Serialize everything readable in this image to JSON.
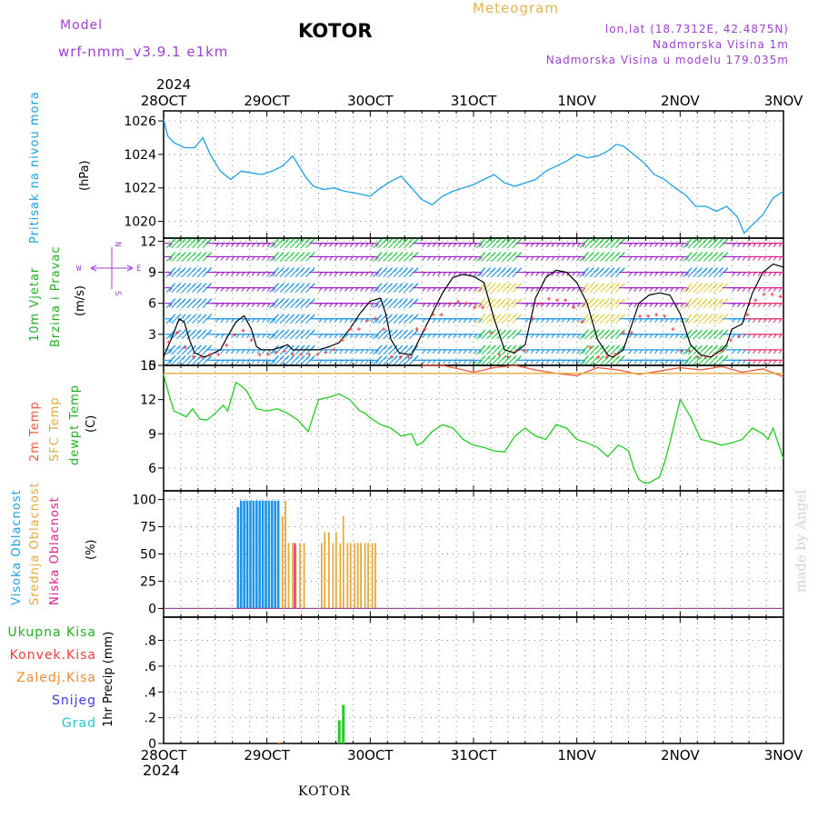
{
  "header": {
    "model_label": "Model",
    "model_name": "wrf-nmm_v3.9.1  e1km",
    "station": "KOTOR",
    "meteogram": "Meteogram",
    "lonlat": "lon,lat (18.7312E, 42.4875N)",
    "altitude": "Nadmorska Visina 1m",
    "model_altitude": "Nadmorska Visina u modelu 179.035m",
    "credit": "made by Angel",
    "footer": "KOTOR"
  },
  "time_axis": {
    "labels": [
      "28OCT",
      "29OCT",
      "30OCT",
      "31OCT",
      "1NOV",
      "2NOV",
      "3NOV"
    ],
    "year": "2024"
  },
  "colors": {
    "pressure": "#1ea0e6",
    "wind_label": "#22b022",
    "dir_label": "#a040d0",
    "temp2m": "#f05a3c",
    "sfc_temp": "#e6aa3c",
    "dewpt": "#22cc22",
    "high_cloud": "#1e96e6",
    "mid_cloud": "#e6aa3c",
    "low_cloud": "#dc1e8c",
    "precip_total": "#22cc22",
    "precip_conv": "#f03c3c",
    "precip_frozen": "#f08c32",
    "snow": "#3c3cdc",
    "hail": "#22c8c8"
  },
  "chart_data": [
    {
      "type": "line",
      "name": "pressure",
      "ylabel": [
        "Pritisak na nivou mora",
        "(hPa)"
      ],
      "ylim": [
        1019,
        1026.6
      ],
      "yticks": [
        1020,
        1022,
        1024,
        1026
      ],
      "x_days": [
        0,
        0.04,
        0.1,
        0.2,
        0.3,
        0.38,
        0.45,
        0.55,
        0.65,
        0.75,
        0.85,
        0.95,
        1.05,
        1.15,
        1.25,
        1.3,
        1.38,
        1.45,
        1.55,
        1.65,
        1.75,
        1.85,
        2.0,
        2.1,
        2.2,
        2.3,
        2.4,
        2.5,
        2.6,
        2.7,
        2.8,
        2.9,
        3.0,
        3.1,
        3.2,
        3.3,
        3.4,
        3.5,
        3.6,
        3.7,
        3.8,
        3.9,
        4.0,
        4.1,
        4.2,
        4.3,
        4.38,
        4.45,
        4.55,
        4.65,
        4.75,
        4.85,
        4.95,
        5.05,
        5.15,
        5.25,
        5.35,
        5.45,
        5.55,
        5.62,
        5.7,
        5.8,
        5.9,
        6.0
      ],
      "y": [
        1026.1,
        1025.1,
        1024.7,
        1024.4,
        1024.4,
        1025.0,
        1024.0,
        1023.0,
        1022.5,
        1023.0,
        1022.9,
        1022.8,
        1023.0,
        1023.3,
        1023.9,
        1023.4,
        1022.6,
        1022.1,
        1021.9,
        1022.0,
        1021.8,
        1021.7,
        1021.5,
        1022.0,
        1022.4,
        1022.7,
        1022.0,
        1021.3,
        1021.0,
        1021.5,
        1021.8,
        1022.0,
        1022.2,
        1022.5,
        1022.8,
        1022.3,
        1022.1,
        1022.3,
        1022.5,
        1023.0,
        1023.3,
        1023.6,
        1024.0,
        1023.8,
        1023.9,
        1024.2,
        1024.6,
        1024.5,
        1024.0,
        1023.5,
        1022.8,
        1022.5,
        1022.0,
        1021.6,
        1020.9,
        1020.9,
        1020.6,
        1020.9,
        1020.3,
        1019.3,
        1019.8,
        1020.4,
        1021.4,
        1021.8
      ]
    },
    {
      "type": "line",
      "name": "wind",
      "ylabel": [
        "10m Vjetar",
        "Brzina i Pravac",
        "(m/s)"
      ],
      "compass": [
        "N",
        "E",
        "S",
        "W"
      ],
      "ylim": [
        0,
        12.3
      ],
      "yticks": [
        0,
        3,
        6,
        9,
        12
      ],
      "x_days": [
        0,
        0.1,
        0.15,
        0.2,
        0.25,
        0.3,
        0.4,
        0.55,
        0.62,
        0.7,
        0.78,
        0.85,
        0.9,
        0.95,
        1.05,
        1.15,
        1.2,
        1.25,
        1.35,
        1.5,
        1.6,
        1.7,
        1.8,
        1.9,
        2.0,
        2.1,
        2.15,
        2.2,
        2.28,
        2.4,
        2.6,
        2.7,
        2.8,
        2.9,
        3.0,
        3.1,
        3.2,
        3.3,
        3.4,
        3.5,
        3.6,
        3.7,
        3.8,
        3.9,
        4.0,
        4.1,
        4.2,
        4.3,
        4.35,
        4.45,
        4.55,
        4.6,
        4.7,
        4.8,
        4.9,
        5.0,
        5.1,
        5.2,
        5.3,
        5.4,
        5.45,
        5.5,
        5.6,
        5.7,
        5.8,
        5.9,
        6.0
      ],
      "y": [
        0.8,
        3.2,
        4.5,
        4.2,
        2.5,
        1.2,
        0.8,
        1.5,
        2.8,
        4.2,
        4.8,
        3.5,
        1.8,
        1.5,
        1.5,
        1.8,
        2.0,
        1.5,
        1.5,
        1.5,
        1.8,
        2.2,
        3.5,
        5.0,
        6.2,
        6.5,
        5.0,
        2.5,
        1.2,
        1.0,
        5.0,
        7.0,
        8.5,
        8.8,
        8.6,
        8.0,
        4.5,
        1.5,
        1.2,
        2.0,
        6.5,
        8.5,
        9.2,
        9.0,
        8.0,
        6.0,
        2.5,
        1.0,
        0.8,
        1.5,
        4.5,
        6.0,
        6.8,
        7.0,
        6.8,
        5.0,
        2.0,
        1.0,
        0.8,
        1.5,
        2.0,
        3.5,
        4.0,
        7.0,
        9.0,
        9.8,
        9.5
      ]
    },
    {
      "type": "line",
      "name": "temperature",
      "ylabel": [
        "2m Temp",
        "SFC Temp",
        "dewpt Temp",
        "(C)"
      ],
      "ylim": [
        4,
        15
      ],
      "yticks": [
        6,
        9,
        12,
        15
      ],
      "series": [
        {
          "key": "t2m",
          "x_days": [
            2.5,
            2.7,
            2.9,
            3.0,
            3.2,
            3.4,
            3.6,
            3.8,
            4.0,
            4.2,
            4.4,
            4.6,
            4.8,
            5.0,
            5.2,
            5.4,
            5.6,
            5.8,
            6.0
          ],
          "y": [
            15.3,
            15.0,
            14.6,
            14.4,
            14.8,
            15.0,
            14.6,
            14.3,
            14.1,
            14.8,
            14.6,
            14.2,
            14.5,
            14.8,
            14.6,
            14.9,
            14.4,
            14.7,
            14.0
          ]
        },
        {
          "key": "sfc",
          "x_days": [
            0,
            6
          ],
          "y": [
            14.3,
            14.3
          ]
        },
        {
          "key": "dewpt",
          "x_days": [
            0,
            0.05,
            0.1,
            0.15,
            0.22,
            0.28,
            0.35,
            0.42,
            0.5,
            0.58,
            0.62,
            0.7,
            0.75,
            0.8,
            0.9,
            1.0,
            1.1,
            1.2,
            1.3,
            1.4,
            1.5,
            1.6,
            1.7,
            1.8,
            1.9,
            1.95,
            2.0,
            2.1,
            2.2,
            2.3,
            2.4,
            2.45,
            2.5,
            2.6,
            2.7,
            2.8,
            2.9,
            3.0,
            3.1,
            3.2,
            3.3,
            3.4,
            3.5,
            3.6,
            3.7,
            3.8,
            3.9,
            4.0,
            4.1,
            4.2,
            4.3,
            4.4,
            4.45,
            4.5,
            4.55,
            4.6,
            4.65,
            4.7,
            4.8,
            4.85,
            4.9,
            5.0,
            5.1,
            5.2,
            5.3,
            5.4,
            5.5,
            5.6,
            5.7,
            5.8,
            5.85,
            5.9,
            6.0
          ],
          "y": [
            14.2,
            12.5,
            11.0,
            10.8,
            10.5,
            11.2,
            10.3,
            10.2,
            10.8,
            11.5,
            11.0,
            13.5,
            13.2,
            12.8,
            11.2,
            11.0,
            11.2,
            10.8,
            10.2,
            9.2,
            12.0,
            12.2,
            12.5,
            12.0,
            11.0,
            10.8,
            10.4,
            9.8,
            9.5,
            8.8,
            9.0,
            8.0,
            8.2,
            9.2,
            9.8,
            9.5,
            8.5,
            8.0,
            7.8,
            7.5,
            7.4,
            8.8,
            9.5,
            8.8,
            8.5,
            9.8,
            9.5,
            8.5,
            8.2,
            7.8,
            7.0,
            8.0,
            7.8,
            7.5,
            6.0,
            5.0,
            4.7,
            4.7,
            5.2,
            6.5,
            8.2,
            12.0,
            10.5,
            8.5,
            8.3,
            8.0,
            8.2,
            8.5,
            9.5,
            9.0,
            8.5,
            9.5,
            6.8
          ]
        }
      ]
    },
    {
      "type": "bar",
      "name": "cloud_cover",
      "ylabel": [
        "Visoka Oblacnost",
        "Srednja Oblacnost",
        "Niska Oblacnost",
        "(%)"
      ],
      "ylim": [
        -8,
        108
      ],
      "yticks": [
        0,
        25,
        50,
        75,
        100
      ],
      "series": [
        {
          "key": "high",
          "x_days": [
            0.72,
            0.75,
            0.78,
            0.81,
            0.84,
            0.87,
            0.9,
            0.93,
            0.96,
            0.99,
            1.02,
            1.05,
            1.08,
            1.11
          ],
          "values": [
            93,
            99,
            99,
            99,
            99,
            99,
            99,
            99,
            99,
            99,
            99,
            99,
            99,
            99
          ]
        },
        {
          "key": "mid",
          "x_days": [
            1.15,
            1.18,
            1.21,
            1.25,
            1.28,
            1.32,
            1.36,
            1.53,
            1.56,
            1.6,
            1.64,
            1.67,
            1.71,
            1.74,
            1.78,
            1.81,
            1.85,
            1.88,
            1.91,
            1.95,
            1.98,
            2.02,
            2.05
          ],
          "values": [
            85,
            99,
            60,
            60,
            58,
            60,
            60,
            60,
            70,
            70,
            60,
            70,
            60,
            85,
            60,
            60,
            60,
            60,
            60,
            60,
            60,
            60,
            60
          ]
        },
        {
          "key": "low",
          "x_days": [
            1.27
          ],
          "values": [
            60
          ]
        }
      ]
    },
    {
      "type": "bar",
      "name": "precipitation",
      "ylabel": [
        "1hr Precip (mm)"
      ],
      "legend": [
        "Ukupna Kisa",
        "Konvek.Kisa",
        "Zaledj.Kisa",
        "Snijeg",
        "Grad"
      ],
      "ylim": [
        0,
        0.98
      ],
      "yticks": [
        0,
        0.2,
        0.4,
        0.6,
        0.8
      ],
      "series": [
        {
          "key": "total",
          "x_days": [
            1.7,
            1.74
          ],
          "values": [
            0.18,
            0.3
          ]
        },
        {
          "key": "frozen",
          "x_days": [
            1.12
          ],
          "values": [
            0.01
          ]
        }
      ]
    }
  ]
}
